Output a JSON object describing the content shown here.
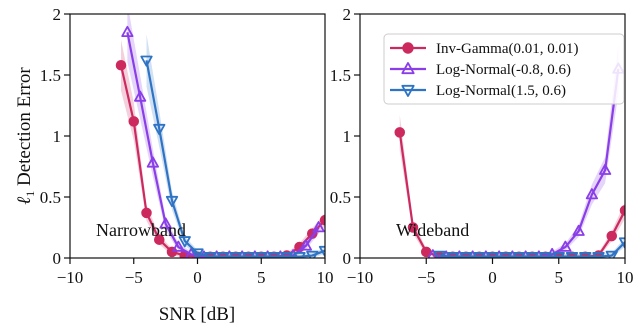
{
  "chart_data": {
    "type": "line",
    "ylabel_prefix": "ℓ",
    "ylabel_sub": "1",
    "ylabel_rest": " Detection Error",
    "xlabel": "SNR [dB]",
    "xlim": [
      -10,
      10
    ],
    "ylim": [
      0,
      2
    ],
    "xticks": [
      -10,
      -5,
      0,
      5,
      10
    ],
    "xtick_labels": [
      "−10",
      "−5",
      "0",
      "5",
      "10"
    ],
    "yticks": [
      0,
      0.5,
      1,
      1.5,
      2
    ],
    "ytick_labels": [
      "0",
      "0.5",
      "1",
      "1.5",
      "2"
    ],
    "legend": {
      "placement": "top-right of right panel",
      "entries": [
        {
          "label": "Inv-Gamma(0.01, 0.01)",
          "color": "#cc2a5f",
          "marker": "circle"
        },
        {
          "label": "Log-Normal(-0.8, 0.6)",
          "color": "#8a3ee8",
          "marker": "triangle-up"
        },
        {
          "label": "Log-Normal(1.5, 0.6)",
          "color": "#2f74c4",
          "marker": "triangle-down"
        }
      ]
    },
    "panels": [
      {
        "label": "Narrowband",
        "series": [
          {
            "color": "#cc2a5f",
            "marker": "circle",
            "x": [
              -6,
              -5,
              -4,
              -3,
              -2,
              -1,
              0,
              1,
              2,
              3,
              4,
              5,
              6,
              7,
              8,
              9,
              10
            ],
            "y": [
              1.58,
              1.12,
              0.37,
              0.15,
              0.05,
              0.02,
              0.01,
              0.01,
              0.01,
              0.01,
              0.01,
              0.01,
              0.01,
              0.02,
              0.09,
              0.2,
              0.31
            ]
          },
          {
            "color": "#8a3ee8",
            "marker": "triangle-up",
            "x": [
              -5.5,
              -4.5,
              -3.5,
              -2.5,
              -1.5,
              -0.5,
              0.5,
              1.5,
              2.5,
              3.5,
              4.5,
              5.5,
              6.5,
              7.5,
              8.5,
              9.5
            ],
            "y": [
              1.85,
              1.32,
              0.78,
              0.28,
              0.09,
              0.03,
              0.01,
              0.01,
              0.01,
              0.01,
              0.01,
              0.01,
              0.01,
              0.02,
              0.1,
              0.25
            ]
          },
          {
            "color": "#2f74c4",
            "marker": "triangle-down",
            "x": [
              -4,
              -3,
              -2,
              -1,
              0,
              1,
              2,
              3,
              4,
              5,
              6,
              7,
              8,
              9,
              10
            ],
            "y": [
              1.62,
              1.06,
              0.47,
              0.14,
              0.04,
              0.01,
              0.01,
              0.01,
              0.01,
              0.01,
              0.01,
              0.01,
              0.01,
              0.02,
              0.06
            ]
          }
        ]
      },
      {
        "label": "Wideband",
        "series": [
          {
            "color": "#cc2a5f",
            "marker": "circle",
            "x": [
              -7,
              -6,
              -5,
              -4,
              -3,
              -2,
              -1,
              0,
              1,
              2,
              3,
              4,
              5,
              6,
              7,
              8,
              9,
              10
            ],
            "y": [
              1.03,
              0.25,
              0.05,
              0.01,
              0.01,
              0.01,
              0.01,
              0.01,
              0.01,
              0.01,
              0.01,
              0.01,
              0.01,
              0.01,
              0.01,
              0.02,
              0.18,
              0.39
            ]
          },
          {
            "color": "#8a3ee8",
            "marker": "triangle-up",
            "x": [
              -4.5,
              -3.5,
              -2.5,
              -1.5,
              -0.5,
              0.5,
              1.5,
              2.5,
              3.5,
              4.5,
              5.5,
              6.5,
              7.5,
              8.5,
              9.5
            ],
            "y": [
              0.02,
              0.01,
              0.01,
              0.01,
              0.01,
              0.01,
              0.01,
              0.01,
              0.01,
              0.03,
              0.09,
              0.22,
              0.52,
              0.72,
              1.55
            ]
          },
          {
            "color": "#2f74c4",
            "marker": "triangle-down",
            "x": [
              -4,
              -3,
              -2,
              -1,
              0,
              1,
              2,
              3,
              4,
              5,
              6,
              7,
              8,
              9,
              10
            ],
            "y": [
              0.02,
              0.01,
              0.01,
              0.01,
              0.01,
              0.01,
              0.01,
              0.01,
              0.01,
              0.01,
              0.01,
              0.01,
              0.01,
              0.02,
              0.13
            ]
          }
        ]
      }
    ]
  }
}
